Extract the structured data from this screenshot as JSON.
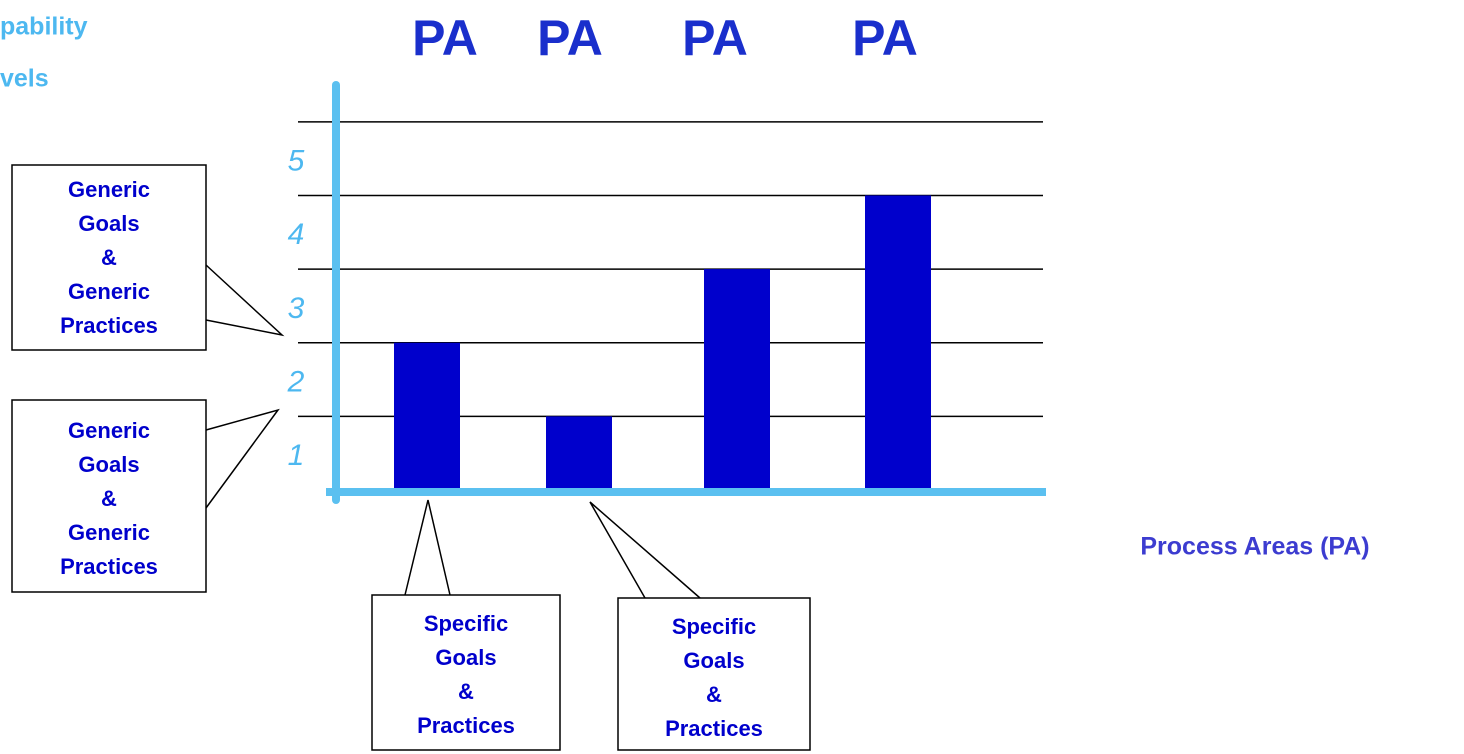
{
  "chart_data": {
    "type": "bar",
    "ylabel": [
      "pability",
      "vels"
    ],
    "xlabel": "Process Areas (PA)",
    "categories": [
      "PA",
      "PA",
      "PA",
      "PA"
    ],
    "values": [
      2,
      1,
      3,
      4
    ],
    "color": "#0000cc",
    "ylim": [
      0,
      5.5
    ],
    "yticks": [
      1,
      2,
      3,
      4,
      5
    ],
    "grid": true,
    "callouts": [
      {
        "lines": [
          "Generic",
          "Goals",
          "&",
          "Generic",
          "Practices"
        ]
      },
      {
        "lines": [
          "Generic",
          "Goals",
          "&",
          "Generic",
          "Practices"
        ]
      },
      {
        "lines": [
          "Specific",
          "Goals",
          "&",
          "Practices"
        ]
      },
      {
        "lines": [
          "Specific",
          "Goals",
          "&",
          "Practices"
        ]
      }
    ]
  }
}
